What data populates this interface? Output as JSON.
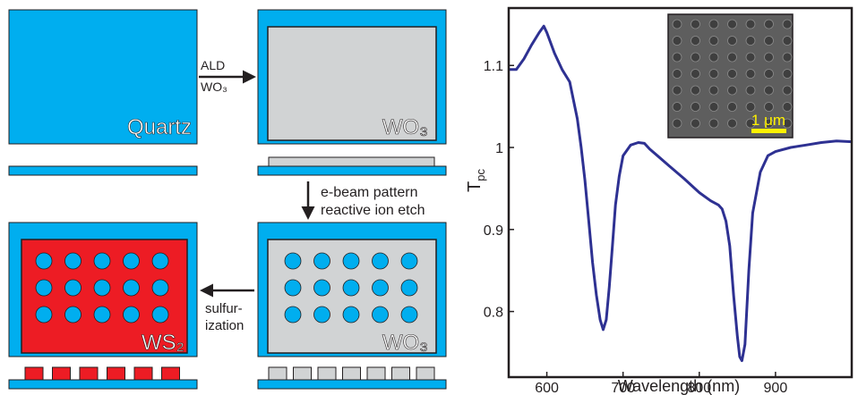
{
  "colors": {
    "quartz": "#00aeef",
    "oxide": "#d1d3d4",
    "sulfide": "#ed1c24",
    "hole": "#00aeef",
    "outline": "#231f20",
    "arrow": "#231f20",
    "curve": "#2e3192",
    "sem_background": "#5e5e5e",
    "scale_bar": "#fff200"
  },
  "diagram": {
    "quartz_label": "Quartz",
    "wo3_top_label": "WO₃",
    "wo3_bottom_label": "WO₃",
    "ws2_label": "WS₂",
    "ald_label_line1": "ALD",
    "ald_label_line2": "WO₃",
    "pattern_label_line1": "e-beam pattern",
    "pattern_label_line2": "reactive ion etch",
    "sulfurization_line1": "sulfur-",
    "sulfurization_line2": "ization"
  },
  "inset": {
    "scale_label": "1 μm"
  },
  "chart_data": {
    "type": "line",
    "xlabel": "Wavelength (nm)",
    "ylabel_main": "T",
    "ylabel_sub": "pc",
    "xlim": [
      550,
      1000
    ],
    "ylim": [
      0.72,
      1.17
    ],
    "x_ticks": [
      600,
      700,
      800,
      900
    ],
    "y_ticks": [
      0.8,
      0.9,
      1,
      1.1
    ],
    "x_tick_labels": [
      "600",
      "700",
      "800",
      "900"
    ],
    "y_tick_labels": [
      "0.8",
      "0.9",
      "1",
      "1.1"
    ],
    "grid": false,
    "series": [
      {
        "x": [
          550,
          560,
          570,
          580,
          590,
          596,
          600,
          610,
          620,
          630,
          640,
          645,
          650,
          655,
          660,
          665,
          670,
          674,
          678,
          682,
          686,
          690,
          695,
          700,
          710,
          720,
          728,
          735,
          745,
          760,
          780,
          800,
          815,
          825,
          830,
          835,
          840,
          845,
          850,
          853,
          856,
          860,
          865,
          870,
          880,
          890,
          900,
          920,
          940,
          960,
          980,
          1000
        ],
        "y": [
          1.095,
          1.095,
          1.108,
          1.125,
          1.14,
          1.148,
          1.14,
          1.115,
          1.095,
          1.08,
          1.035,
          1.0,
          0.96,
          0.91,
          0.86,
          0.82,
          0.79,
          0.778,
          0.79,
          0.83,
          0.88,
          0.93,
          0.965,
          0.99,
          1.003,
          1.006,
          1.005,
          0.998,
          0.99,
          0.978,
          0.962,
          0.945,
          0.935,
          0.93,
          0.925,
          0.91,
          0.88,
          0.82,
          0.77,
          0.745,
          0.74,
          0.76,
          0.85,
          0.92,
          0.97,
          0.99,
          0.995,
          1.0,
          1.003,
          1.006,
          1.008,
          1.007
        ]
      }
    ]
  }
}
